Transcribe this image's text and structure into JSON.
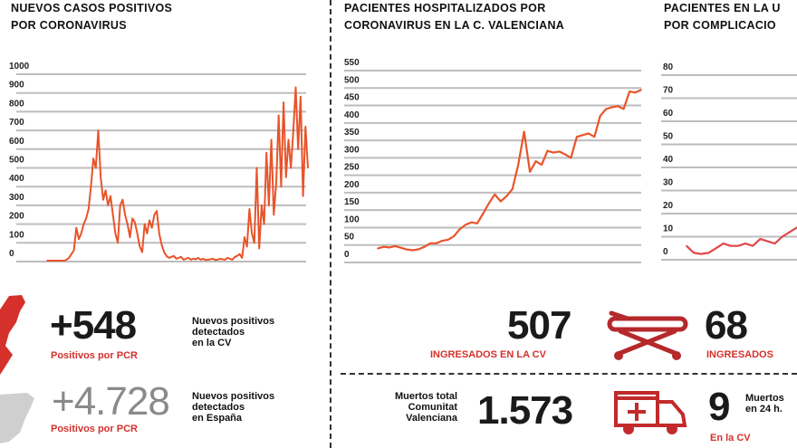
{
  "chart_data": [
    {
      "type": "line",
      "title": "NUEVOS CASOS POSITIVOS POR CORONAVIRUS",
      "ylim": [
        0,
        1000
      ],
      "yticks": [
        0,
        100,
        200,
        300,
        400,
        500,
        600,
        700,
        800,
        900,
        1000
      ],
      "grid": true,
      "color": "#e8542a",
      "values": [
        5,
        5,
        5,
        5,
        5,
        5,
        5,
        5,
        10,
        20,
        40,
        60,
        180,
        120,
        150,
        200,
        230,
        280,
        400,
        550,
        500,
        700,
        450,
        330,
        380,
        300,
        350,
        250,
        150,
        100,
        300,
        330,
        250,
        200,
        130,
        230,
        210,
        150,
        80,
        50,
        200,
        150,
        220,
        180,
        250,
        270,
        150,
        90,
        50,
        30,
        20,
        25,
        30,
        15,
        20,
        25,
        10,
        15,
        20,
        10,
        15,
        12,
        20,
        10,
        15,
        8,
        10,
        12,
        15,
        8,
        10,
        15,
        12,
        10,
        20,
        15,
        10,
        25,
        30,
        40,
        20,
        130,
        80,
        280,
        150,
        100,
        500,
        70,
        300,
        200,
        580,
        300,
        650,
        250,
        420,
        780,
        400,
        850,
        450,
        650,
        500,
        700,
        930,
        600,
        880,
        350,
        720,
        500
      ]
    },
    {
      "type": "line",
      "title": "PACIENTES HOSPITALIZADOS POR CORONAVIRUS EN LA C. VALENCIANA",
      "ylim": [
        0,
        550
      ],
      "yticks": [
        0,
        50,
        100,
        150,
        200,
        250,
        300,
        350,
        400,
        450,
        500,
        550
      ],
      "grid": true,
      "color": "#e8542a",
      "values": [
        40,
        45,
        43,
        47,
        42,
        37,
        35,
        38,
        45,
        55,
        55,
        62,
        65,
        75,
        95,
        108,
        115,
        112,
        140,
        170,
        195,
        175,
        190,
        210,
        280,
        375,
        260,
        290,
        280,
        320,
        315,
        318,
        310,
        300,
        360,
        365,
        370,
        360,
        420,
        440,
        445,
        448,
        440,
        490,
        487,
        495
      ]
    },
    {
      "type": "line",
      "title": "PACIENTES EN LA U POR COMPLICACIO",
      "ylim": [
        0,
        80
      ],
      "yticks": [
        0,
        10,
        20,
        30,
        40,
        50,
        60,
        70,
        80
      ],
      "grid": true,
      "color": "#e0484a",
      "values": [
        6,
        3,
        2.5,
        3,
        5,
        7,
        6,
        6,
        7,
        6,
        9,
        8,
        7,
        10,
        12,
        14
      ]
    }
  ],
  "charts": {
    "c1": {
      "title1": "NUEVOS CASOS POSITIVOS",
      "title2": "POR CORONAVIRUS"
    },
    "c2": {
      "title1": "PACIENTES HOSPITALIZADOS POR",
      "title2": "CORONAVIRUS EN LA C. VALENCIANA"
    },
    "c3": {
      "title1": "PACIENTES EN LA U",
      "title2": "POR COMPLICACIO"
    }
  },
  "stats": {
    "cv_positivos": {
      "value": "+548",
      "label": "Positivos por PCR",
      "desc1": "Nuevos positivos",
      "desc2": "detectados",
      "desc3": "en la CV"
    },
    "es_positivos": {
      "value": "+4.728",
      "label": "Positivos por PCR",
      "desc1": "Nuevos positivos",
      "desc2": "detectados",
      "desc3": "en España"
    },
    "ingresados_cv": {
      "value": "507",
      "label": "INGRESADOS EN LA CV"
    },
    "ingresados_uci": {
      "value": "68",
      "label": "INGRESADOS"
    },
    "muertos_total": {
      "desc1": "Muertos total",
      "desc2": "Comunitat",
      "desc3": "Valenciana",
      "value": "1.573"
    },
    "muertos_24h": {
      "value": "9",
      "desc1": "Muertos",
      "desc2": "en 24 h.",
      "label": "En la CV"
    }
  },
  "colors": {
    "accent": "#d5302b",
    "line": "#e8542a",
    "grid": "#bdbdbd",
    "spain": "#cfcfcf"
  },
  "icons": [
    "valencia-map-icon",
    "spain-map-icon",
    "stretcher-icon",
    "ambulance-icon"
  ]
}
